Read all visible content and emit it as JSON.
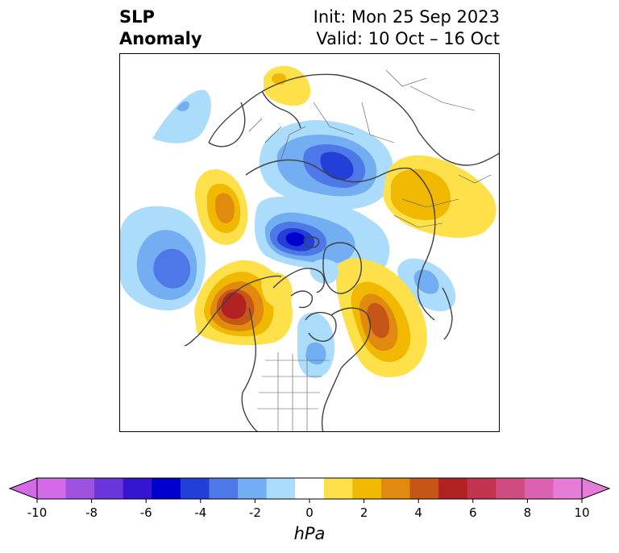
{
  "title": {
    "left_line1": "SLP",
    "left_line2": "Anomaly",
    "init": "Init: Mon 25 Sep 2023",
    "valid": "Valid: 10 Oct – 16 Oct"
  },
  "map": {
    "projection": "north-polar-stereographic",
    "field": "sea level pressure anomaly",
    "anomaly_centers": [
      {
        "region": "Barents/Kara Sea",
        "sign": "negative",
        "peak_hpa": -5
      },
      {
        "region": "Central Arctic / Chukchi side",
        "sign": "negative",
        "peak_hpa": -7
      },
      {
        "region": "North Pacific",
        "sign": "negative",
        "peak_hpa": -5
      },
      {
        "region": "NE Pacific / Gulf of Alaska",
        "sign": "positive",
        "peak_hpa": 7
      },
      {
        "region": "East Siberia",
        "sign": "positive",
        "peak_hpa": 4
      },
      {
        "region": "North Atlantic / Labrador",
        "sign": "positive",
        "peak_hpa": 6
      },
      {
        "region": "Sea of Okhotsk / NE Asia",
        "sign": "positive",
        "peak_hpa": 3
      },
      {
        "region": "Scandinavia / Arctic Europe",
        "sign": "positive",
        "peak_hpa": 2
      },
      {
        "region": "Great Lakes / US Midwest",
        "sign": "negative",
        "peak_hpa": -2
      },
      {
        "region": "Iceland / Greenland Sea",
        "sign": "negative",
        "peak_hpa": -3
      }
    ]
  },
  "colorbar": {
    "unit_label": "hPa",
    "tick_labels": [
      "-10",
      "-8",
      "-6",
      "-4",
      "-2",
      "0",
      "2",
      "4",
      "6",
      "8",
      "10"
    ],
    "levels": [
      -10,
      -9,
      -8,
      -7,
      -6,
      -5,
      -4,
      -3,
      -2,
      -1,
      1,
      2,
      3,
      4,
      5,
      6,
      7,
      8,
      9,
      10
    ],
    "colors": [
      "#d46ae8",
      "#9e52e0",
      "#6a35db",
      "#3415d0",
      "#0000cc",
      "#2240d8",
      "#4e78e8",
      "#74aef2",
      "#acdcfb",
      "#ffffff",
      "#fde04a",
      "#f1b800",
      "#e08a10",
      "#c65618",
      "#b22222",
      "#c2344e",
      "#cf4c80",
      "#db62b0",
      "#e57cd8"
    ],
    "extend_low_color": "#d46ae8",
    "extend_high_color": "#e57cd8"
  }
}
